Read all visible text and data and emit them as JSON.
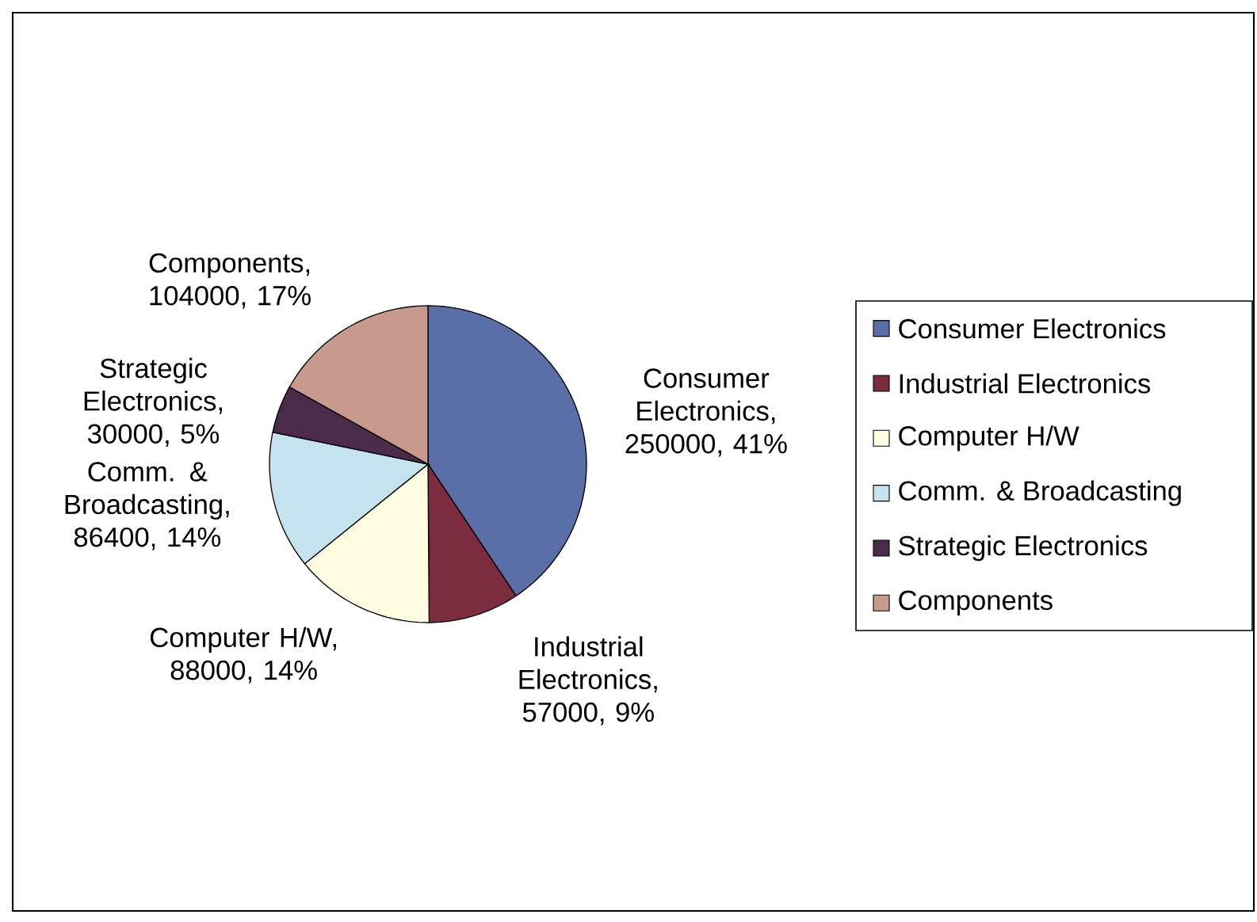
{
  "chart_data": {
    "type": "pie",
    "categories": [
      "Consumer Electronics",
      "Industrial Electronics",
      "Computer H/W",
      "Comm. & Broadcasting",
      "Strategic Electronics",
      "Components"
    ],
    "values": [
      250000,
      57000,
      88000,
      86400,
      30000,
      104000
    ],
    "colors": [
      "#5a6fa8",
      "#7b2c3f",
      "#fdfbe0",
      "#c5e3ef",
      "#4a2c4a",
      "#c89a8e"
    ],
    "value_labels": [
      "Consumer Electronics, 250000, 41%",
      "Industrial Electronics, 57000, 9%",
      "Computer H/W, 88000, 14%",
      "Comm. & Broadcasting, 86400, 14%",
      "Strategic Electronics, 30000, 5%",
      "Components, 104000, 17%"
    ],
    "legend": "right"
  }
}
